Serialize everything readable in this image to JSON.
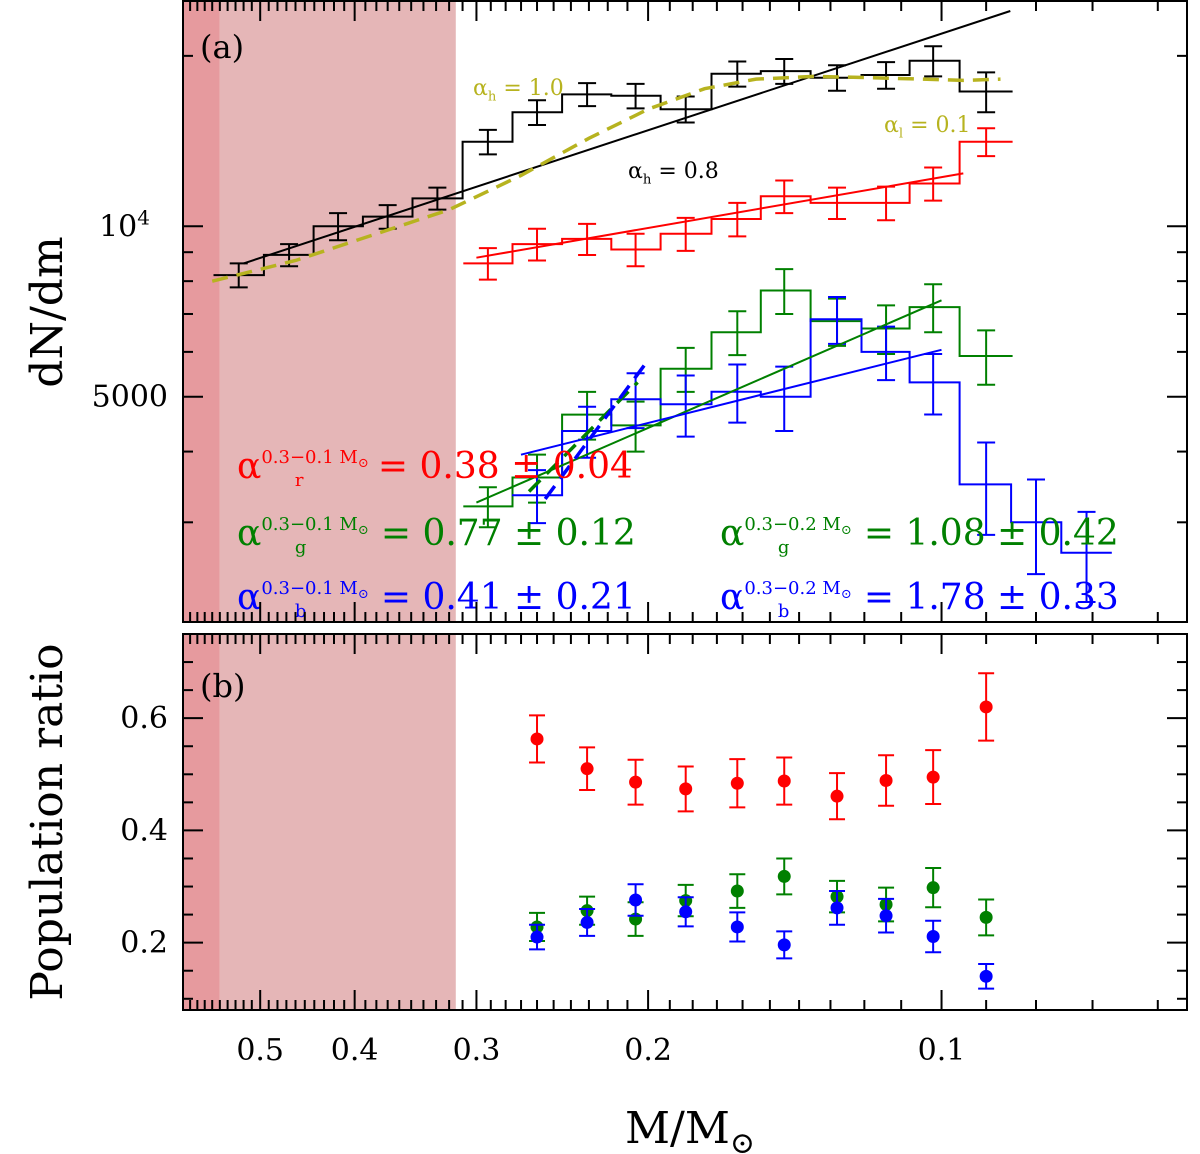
{
  "chart_data": [
    {
      "type": "line",
      "panel_label": "(a)",
      "ylabel": "dN/dm",
      "xlabel": "M/M",
      "xlabel_sub": "⊙",
      "x_scale": "log",
      "x_reversed": true,
      "xlim": [
        0.6,
        0.056
      ],
      "y_scale": "log",
      "ylim": [
        2000,
        25000
      ],
      "x_ticks": [
        0.5,
        0.4,
        0.3,
        0.2,
        0.1
      ],
      "x_tick_labels": [
        "0.5",
        "0.4",
        "0.3",
        "0.2",
        "0.1"
      ],
      "y_tick_labels": [
        {
          "value": 10000,
          "base": "10",
          "exp": "4"
        },
        {
          "value": 5000,
          "base": "5000",
          "exp": ""
        }
      ],
      "shaded_regions": [
        {
          "from": 0.6,
          "to": 0.55,
          "color": "#e69a9e"
        },
        {
          "from": 0.55,
          "to": 0.315,
          "color": "#e5b6b7"
        }
      ],
      "series": [
        {
          "name": "total",
          "color": "#000000",
          "mass": [
            0.526,
            0.467,
            0.416,
            0.37,
            0.329,
            0.292,
            0.26,
            0.231,
            0.206,
            0.183,
            0.162,
            0.145,
            0.128,
            0.114,
            0.102,
            0.09
          ],
          "values": [
            8200,
            8900,
            10000,
            10400,
            11200,
            14100,
            15900,
            17100,
            17000,
            16100,
            18600,
            18800,
            18300,
            18500,
            19600,
            17300
          ],
          "errors": [
            400,
            400,
            550,
            500,
            500,
            700,
            800,
            800,
            850,
            850,
            950,
            950,
            950,
            1000,
            1200,
            1400
          ]
        },
        {
          "name": "red population",
          "color": "#ff0000",
          "mass": [
            0.292,
            0.26,
            0.231,
            0.206,
            0.183,
            0.162,
            0.145,
            0.128,
            0.114,
            0.102,
            0.09
          ],
          "values": [
            8600,
            9300,
            9500,
            9100,
            9700,
            10300,
            11300,
            11000,
            11000,
            11900,
            14100
          ],
          "errors": [
            550,
            600,
            600,
            600,
            650,
            700,
            750,
            700,
            750,
            800,
            800
          ]
        },
        {
          "name": "green population",
          "color": "#008000",
          "mass": [
            0.292,
            0.26,
            0.231,
            0.206,
            0.183,
            0.162,
            0.145,
            0.128,
            0.114,
            0.102,
            0.09
          ],
          "values": [
            3200,
            3600,
            4650,
            4450,
            5600,
            6500,
            7700,
            6800,
            6600,
            7200,
            5900
          ],
          "errors": [
            260,
            350,
            450,
            450,
            500,
            580,
            700,
            650,
            650,
            700,
            650
          ]
        },
        {
          "name": "blue population",
          "color": "#0000ff",
          "mass": [
            0.26,
            0.231,
            0.206,
            0.183,
            0.162,
            0.145,
            0.128,
            0.114,
            0.102,
            0.09,
            0.08,
            0.071
          ],
          "values": [
            3350,
            4350,
            4950,
            4850,
            5100,
            5000,
            6850,
            6000,
            5300,
            3500,
            3000,
            2650
          ],
          "errors": [
            360,
            450,
            550,
            600,
            600,
            650,
            650,
            650,
            650,
            650,
            570,
            480
          ]
        }
      ],
      "fits": [
        {
          "name": "black power-law fit",
          "color": "#000000",
          "style": "solid",
          "mass": [
            0.52,
            0.085
          ],
          "values": [
            8600,
            24000
          ]
        },
        {
          "name": "yellow two-segment fit",
          "color": "#b7b31f",
          "style": "dashed",
          "curve": true,
          "mass": [
            0.56,
            0.46,
            0.38,
            0.32,
            0.27,
            0.23,
            0.2,
            0.175,
            0.155,
            0.135,
            0.118,
            0.105,
            0.095,
            0.087
          ],
          "values": [
            8000,
            8700,
            9700,
            10700,
            12300,
            14300,
            16100,
            17500,
            18200,
            18400,
            18300,
            18200,
            18100,
            18200
          ]
        },
        {
          "name": "red fit",
          "color": "#ff0000",
          "style": "solid",
          "mass": [
            0.3,
            0.095
          ],
          "values": [
            8800,
            12400
          ]
        },
        {
          "name": "green fit",
          "color": "#008000",
          "style": "solid",
          "mass": [
            0.3,
            0.1
          ],
          "values": [
            3250,
            7400
          ]
        },
        {
          "name": "blue fit",
          "color": "#0000ff",
          "style": "solid",
          "mass": [
            0.27,
            0.1
          ],
          "values": [
            3950,
            6050
          ]
        },
        {
          "name": "green steep fit",
          "color": "#008000",
          "style": "dashed",
          "mass": [
            0.265,
            0.205
          ],
          "values": [
            3400,
            5300
          ]
        },
        {
          "name": "blue steep fit",
          "color": "#0000ff",
          "style": "dashed",
          "mass": [
            0.255,
            0.2
          ],
          "values": [
            3300,
            5800
          ]
        }
      ],
      "annotations": [
        {
          "name": "alpha-h-yellow",
          "color": "#b7b31f",
          "sym": "α",
          "sub": "h",
          "text": " = 1.0"
        },
        {
          "name": "alpha-l-yellow",
          "color": "#b7b31f",
          "sym": "α",
          "sub": "l",
          "text": " = 0.1"
        },
        {
          "name": "alpha-h-black",
          "color": "#000000",
          "sym": "α",
          "sub": "h",
          "text": " = 0.8"
        },
        {
          "name": "alpha-r-wide",
          "color": "#ff0000",
          "sym": "α",
          "sub": "r",
          "sup": "0.3−0.1 M",
          "supsub": "⊙",
          "text": " = 0.38 ± 0.04"
        },
        {
          "name": "alpha-g-wide",
          "color": "#008000",
          "sym": "α",
          "sub": "g",
          "sup": "0.3−0.1 M",
          "supsub": "⊙",
          "text": " = 0.77 ± 0.12"
        },
        {
          "name": "alpha-g-narrow",
          "color": "#008000",
          "sym": "α",
          "sub": "g",
          "sup": "0.3−0.2 M",
          "supsub": "⊙",
          "text": " = 1.08 ± 0.42"
        },
        {
          "name": "alpha-b-wide",
          "color": "#0000ff",
          "sym": "α",
          "sub": "b",
          "sup": "0.3−0.1 M",
          "supsub": "⊙",
          "text": " = 0.41 ± 0.21"
        },
        {
          "name": "alpha-b-narrow",
          "color": "#0000ff",
          "sym": "α",
          "sub": "b",
          "sup": "0.3−0.2 M",
          "supsub": "⊙",
          "text": " = 1.78 ± 0.33"
        }
      ]
    },
    {
      "type": "scatter",
      "panel_label": "(b)",
      "ylabel": "Population ratio",
      "x_scale": "log",
      "xlim": [
        0.6,
        0.056
      ],
      "ylim": [
        0.08,
        0.75
      ],
      "y_ticks": [
        0.2,
        0.4,
        0.6
      ],
      "y_tick_labels": [
        "0.2",
        "0.4",
        "0.6"
      ],
      "series": [
        {
          "name": "red ratio",
          "color": "#ff0000",
          "mass": [
            0.26,
            0.231,
            0.206,
            0.183,
            0.162,
            0.145,
            0.128,
            0.114,
            0.102,
            0.09
          ],
          "values": [
            0.563,
            0.51,
            0.486,
            0.474,
            0.484,
            0.488,
            0.461,
            0.489,
            0.495,
            0.62
          ],
          "errors": [
            0.042,
            0.038,
            0.04,
            0.04,
            0.043,
            0.042,
            0.041,
            0.045,
            0.048,
            0.06
          ]
        },
        {
          "name": "green ratio",
          "color": "#008000",
          "mass": [
            0.26,
            0.231,
            0.206,
            0.183,
            0.162,
            0.145,
            0.128,
            0.114,
            0.102,
            0.09
          ],
          "values": [
            0.228,
            0.257,
            0.242,
            0.275,
            0.292,
            0.318,
            0.282,
            0.268,
            0.298,
            0.245
          ],
          "errors": [
            0.025,
            0.025,
            0.03,
            0.028,
            0.03,
            0.032,
            0.028,
            0.03,
            0.035,
            0.032
          ]
        },
        {
          "name": "blue ratio",
          "color": "#0000ff",
          "mass": [
            0.26,
            0.231,
            0.206,
            0.183,
            0.162,
            0.145,
            0.128,
            0.114,
            0.102,
            0.09
          ],
          "values": [
            0.21,
            0.236,
            0.276,
            0.255,
            0.228,
            0.196,
            0.262,
            0.248,
            0.211,
            0.14
          ],
          "errors": [
            0.022,
            0.024,
            0.028,
            0.026,
            0.026,
            0.024,
            0.03,
            0.03,
            0.028,
            0.022
          ]
        }
      ]
    }
  ]
}
